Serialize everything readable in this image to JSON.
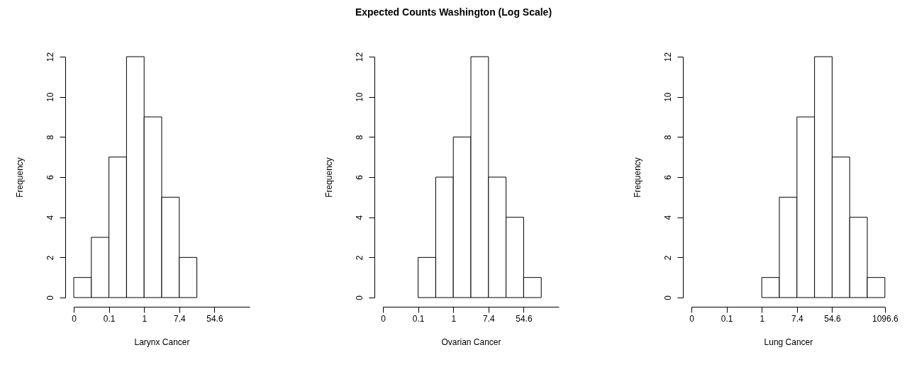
{
  "chart_data": [
    {
      "type": "histogram",
      "xlabel": "Larynx Cancer",
      "ylabel": "Frequency",
      "color": "#ffffff",
      "log": "x",
      "bins": [
        0.0183,
        0.0498,
        0.1353,
        0.3679,
        1,
        2.718,
        7.389,
        20.09
      ],
      "values": [
        1,
        3,
        7,
        12,
        9,
        5,
        2
      ],
      "xlim": [
        0.0183,
        403.4
      ],
      "xticks": [
        {
          "value": 0.0183,
          "label": "0"
        },
        {
          "value": 0.1353,
          "label": "0.1"
        },
        1,
        {
          "value": 7.389,
          "label": "7.4"
        },
        54.6
      ],
      "ylim": [
        0,
        12
      ],
      "yticks": [
        0,
        2,
        4,
        6,
        8,
        10,
        12
      ],
      "grid": false
    },
    {
      "type": "histogram",
      "title": "Expected Counts Washington (Log Scale)",
      "xlabel": "Ovarian Cancer",
      "ylabel": "Frequency",
      "color": "#ffffff",
      "log": "x",
      "bins": [
        0.1353,
        0.3679,
        1,
        2.718,
        7.389,
        20.09,
        54.6,
        148.4
      ],
      "values": [
        2,
        6,
        8,
        12,
        6,
        4,
        1
      ],
      "xlim": [
        0.0183,
        403.4
      ],
      "xticks": [
        {
          "value": 0.0183,
          "label": "0"
        },
        {
          "value": 0.1353,
          "label": "0.1"
        },
        1,
        {
          "value": 7.389,
          "label": "7.4"
        },
        54.6
      ],
      "ylim": [
        0,
        12
      ],
      "yticks": [
        0,
        2,
        4,
        6,
        8,
        10,
        12
      ],
      "grid": false
    },
    {
      "type": "histogram",
      "xlabel": "Lung Cancer",
      "ylabel": "Frequency",
      "color": "#ffffff",
      "log": "x",
      "bins": [
        1,
        2.718,
        7.389,
        20.09,
        54.6,
        148.4,
        403.4,
        1096.6
      ],
      "values": [
        1,
        5,
        9,
        12,
        7,
        4,
        1
      ],
      "xlim": [
        0.0183,
        1096.6
      ],
      "xticks": [
        {
          "value": 0.0183,
          "label": "0"
        },
        {
          "value": 0.1353,
          "label": "0.1"
        },
        1,
        {
          "value": 7.389,
          "label": "7.4"
        },
        54.6,
        1096.6
      ],
      "ylim": [
        0,
        12
      ],
      "yticks": [
        0,
        2,
        4,
        6,
        8,
        10,
        12
      ],
      "grid": false
    }
  ]
}
